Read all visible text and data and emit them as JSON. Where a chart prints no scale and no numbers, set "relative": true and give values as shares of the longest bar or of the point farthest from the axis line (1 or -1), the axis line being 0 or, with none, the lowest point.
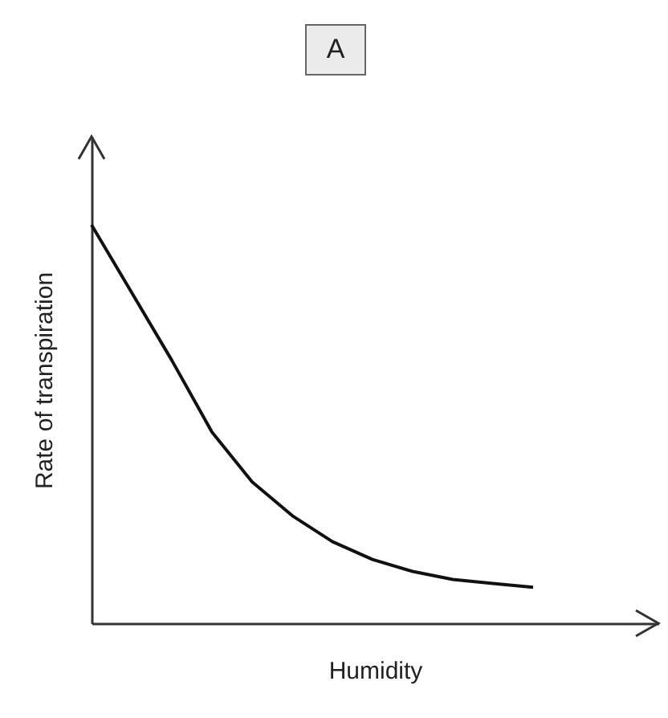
{
  "chart_data": {
    "type": "line",
    "title": "A",
    "xlabel": "Humidity",
    "ylabel": "Rate of transpiration",
    "relative": true,
    "categories": [
      null,
      null,
      null,
      null,
      null,
      null,
      null,
      null,
      null,
      null,
      null,
      null
    ],
    "series": [
      {
        "color": "#111111",
        "values": [
          1.0,
          0.83,
          0.66,
          0.48,
          0.355,
          0.27,
          0.205,
          0.16,
          0.13,
          0.11,
          0.1,
          0.09
        ]
      }
    ]
  }
}
